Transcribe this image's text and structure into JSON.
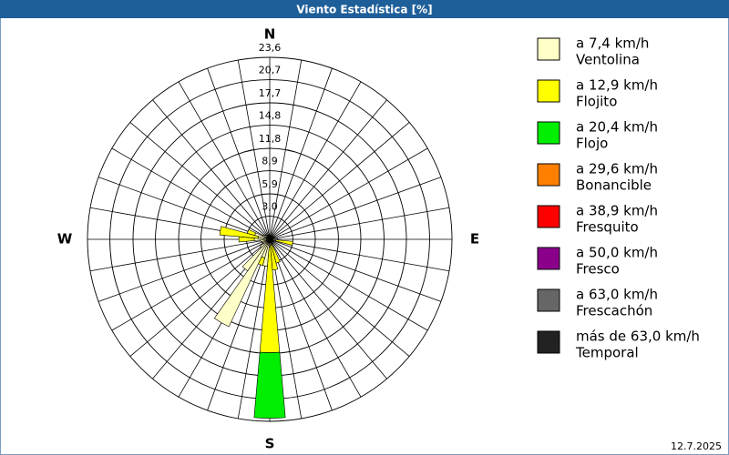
{
  "chart_data": {
    "type": "windrose",
    "title": "Viento Estadística [%]",
    "date": "12.7.2025",
    "categories": [
      "N",
      null,
      null,
      null,
      null,
      null,
      null,
      null,
      null,
      "E",
      null,
      null,
      null,
      null,
      null,
      null,
      null,
      null,
      "S",
      null,
      null,
      null,
      null,
      null,
      null,
      null,
      null,
      "W",
      null,
      null,
      null,
      null,
      null,
      null,
      null,
      null
    ],
    "rlim": [
      0,
      23.6
    ],
    "rticks": [
      {
        "value": 3.0,
        "label": "3,0"
      },
      {
        "value": 5.9,
        "label": "5,9"
      },
      {
        "value": 8.9,
        "label": "8,9"
      },
      {
        "value": 11.8,
        "label": "11,8"
      },
      {
        "value": 14.8,
        "label": "14,8"
      },
      {
        "value": 17.7,
        "label": "17,7"
      },
      {
        "value": 20.7,
        "label": "20,7"
      },
      {
        "value": 23.6,
        "label": "23,6"
      }
    ],
    "grid": true,
    "series": [
      {
        "name": "a 7,4 km/h",
        "description": "Ventolina",
        "color": "#ffffc8",
        "values": [
          0.5,
          0.4,
          0.4,
          0.4,
          0.5,
          0.5,
          0.6,
          0.6,
          0.7,
          1.0,
          0.8,
          0.6,
          0.5,
          0.5,
          0.5,
          0.6,
          0.7,
          0.8,
          1.0,
          3.5,
          2.5,
          12.5,
          5.0,
          1.5,
          1.0,
          1.0,
          1.2,
          2.0,
          1.5,
          2.0,
          1.0,
          0.8,
          0.7,
          0.6,
          0.5,
          0.5
        ]
      },
      {
        "name": "a 12,9 km/h",
        "description": "Flojito",
        "color": "#ffff00",
        "values": [
          0,
          0,
          0,
          0,
          0,
          0,
          0,
          0,
          0,
          0,
          2.2,
          0,
          0,
          0,
          0,
          0,
          2.5,
          3.2,
          13.7,
          0,
          1.0,
          0,
          0,
          0,
          0,
          0,
          0,
          2.0,
          5.0,
          1.0,
          0,
          0,
          0,
          0,
          0,
          0
        ]
      },
      {
        "name": "a 20,4 km/h",
        "description": "Flojo",
        "color": "#00ee00",
        "values": [
          0,
          0,
          0,
          0,
          0,
          0,
          0,
          0,
          0,
          0,
          0,
          0,
          0,
          0,
          0,
          0,
          0,
          0,
          8.5,
          0,
          0,
          0,
          0,
          0,
          0,
          0,
          0,
          0,
          0,
          0,
          0,
          0,
          0,
          0,
          0,
          0
        ]
      },
      {
        "name": "a 29,6 km/h",
        "description": "Bonancible",
        "color": "#ff8000",
        "values": [
          0,
          0,
          0,
          0,
          0,
          0,
          0,
          0,
          0,
          0,
          0,
          0,
          0,
          0,
          0,
          0,
          0,
          0,
          0,
          0,
          0,
          0,
          0,
          0,
          0,
          0,
          0,
          0,
          0,
          0,
          0,
          0,
          0,
          0,
          0,
          0
        ]
      },
      {
        "name": "a 38,9 km/h",
        "description": "Fresquito",
        "color": "#ff0000",
        "values": [
          0,
          0,
          0,
          0,
          0,
          0,
          0,
          0,
          0,
          0,
          0,
          0,
          0,
          0,
          0,
          0,
          0,
          0,
          0,
          0,
          0,
          0,
          0,
          0,
          0,
          0,
          0,
          0,
          0,
          0,
          0,
          0,
          0,
          0,
          0,
          0
        ]
      },
      {
        "name": "a 50,0 km/h",
        "description": "Fresco",
        "color": "#8b008b",
        "values": [
          0,
          0,
          0,
          0,
          0,
          0,
          0,
          0,
          0,
          0,
          0,
          0,
          0,
          0,
          0,
          0,
          0,
          0,
          0,
          0,
          0,
          0,
          0,
          0,
          0,
          0,
          0,
          0,
          0,
          0,
          0,
          0,
          0,
          0,
          0,
          0
        ]
      },
      {
        "name": "a 63,0 km/h",
        "description": "Frescachón",
        "color": "#666666",
        "values": [
          0,
          0,
          0,
          0,
          0,
          0,
          0,
          0,
          0,
          0,
          0,
          0,
          0,
          0,
          0,
          0,
          0,
          0,
          0,
          0,
          0,
          0,
          0,
          0,
          0,
          0,
          0,
          0,
          0,
          0,
          0,
          0,
          0,
          0,
          0,
          0
        ]
      },
      {
        "name": "más de 63,0 km/h",
        "description": "Temporal",
        "color": "#222222",
        "values": [
          0,
          0,
          0,
          0,
          0,
          0,
          0,
          0,
          0,
          0,
          0,
          0,
          0,
          0,
          0,
          0,
          0,
          0,
          0,
          0,
          0,
          0,
          0,
          0,
          0,
          0,
          0,
          0,
          0,
          0,
          0,
          0,
          0,
          0,
          0,
          0
        ]
      }
    ]
  }
}
